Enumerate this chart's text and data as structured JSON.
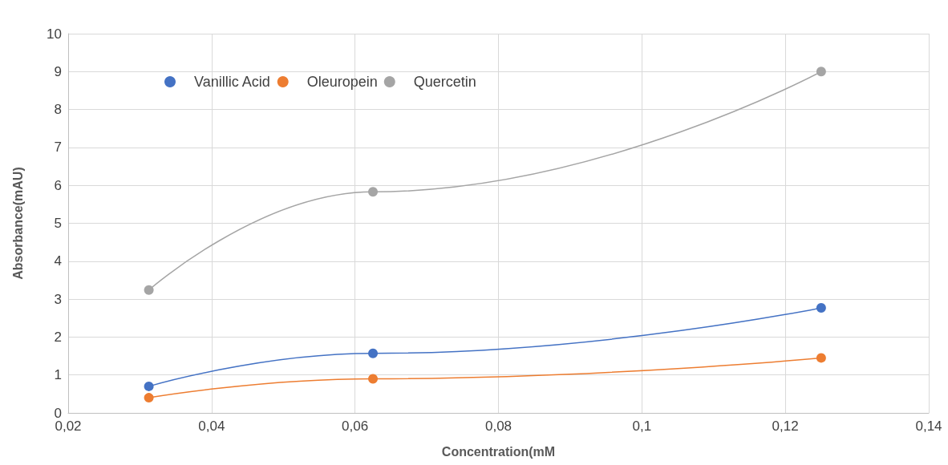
{
  "chart_data": {
    "type": "line",
    "xlabel": "Concentration(mM",
    "ylabel": "Absorbance(mAU)",
    "x": [
      0.03125,
      0.0625,
      0.125
    ],
    "series": [
      {
        "name": "Vanillic Acid",
        "color": "#4472c4",
        "values": [
          0.7,
          1.57,
          2.77
        ]
      },
      {
        "name": "Oleuropein",
        "color": "#ed7d31",
        "values": [
          0.4,
          0.9,
          1.45
        ]
      },
      {
        "name": "Quercetin",
        "color": "#a5a5a5",
        "values": [
          3.24,
          5.83,
          9.0
        ]
      }
    ],
    "xlim": [
      0.02,
      0.14
    ],
    "xticks": [
      {
        "value": 0.02,
        "label": "0,02"
      },
      {
        "value": 0.04,
        "label": "0,04"
      },
      {
        "value": 0.06,
        "label": "0,06"
      },
      {
        "value": 0.08,
        "label": "0,08"
      },
      {
        "value": 0.1,
        "label": "0,1"
      },
      {
        "value": 0.12,
        "label": "0,12"
      },
      {
        "value": 0.14,
        "label": "0,14"
      }
    ],
    "ylim": [
      0,
      10
    ],
    "yticks": [
      0,
      1,
      2,
      3,
      4,
      5,
      6,
      7,
      8,
      9,
      10
    ],
    "grid": true,
    "legend": "top left",
    "marker": "circle",
    "line_style": "solid"
  }
}
